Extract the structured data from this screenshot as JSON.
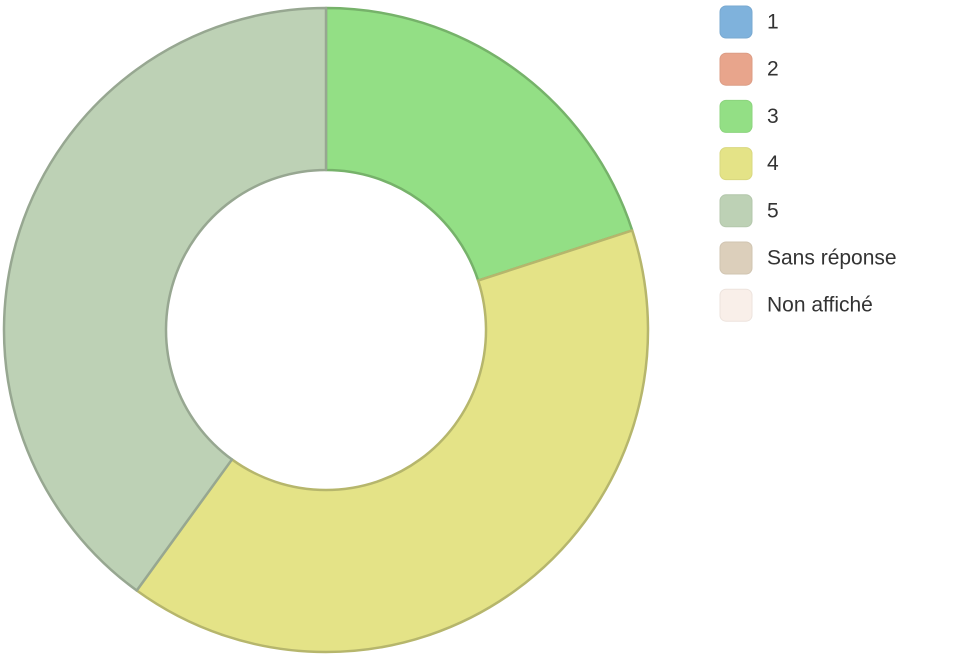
{
  "chart_data": {
    "type": "donut",
    "categories": [
      "1",
      "2",
      "3",
      "4",
      "5",
      "Sans réponse",
      "Non affiché"
    ],
    "values": [
      0,
      0,
      20,
      40,
      40,
      0,
      0
    ],
    "colors": [
      "#7fb2dc",
      "#e8a58c",
      "#93df85",
      "#e4e387",
      "#bdd1b5",
      "#dccfbb",
      "#f9efe9"
    ],
    "legend": "right"
  }
}
